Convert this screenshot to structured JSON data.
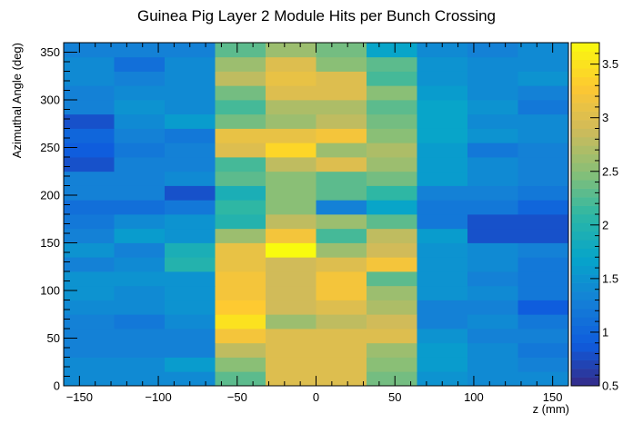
{
  "chart_data": {
    "type": "heatmap",
    "title": "Guinea Pig Layer 2 Module Hits per Bunch Crossing",
    "xlabel": "z (mm)",
    "ylabel": "Azimuthal Angle (deg)",
    "x_range": [
      -160,
      160
    ],
    "y_range": [
      0,
      360
    ],
    "x_ticks": [
      -150,
      -100,
      -50,
      0,
      50,
      100,
      150
    ],
    "y_ticks": [
      0,
      50,
      100,
      150,
      200,
      250,
      300,
      350
    ],
    "z_range": [
      0.5,
      3.7
    ],
    "z_ticks": [
      0.5,
      1,
      1.5,
      2,
      2.5,
      3,
      3.5
    ],
    "x_bins": 10,
    "y_bins": 24,
    "grid": false,
    "legend": "color bar on right",
    "cells": [
      [
        1.4,
        1.4,
        1.4,
        2.3,
        3.0,
        3.0,
        2.4,
        1.5,
        1.4,
        1.4
      ],
      [
        1.4,
        1.4,
        1.6,
        2.5,
        3.0,
        3.0,
        2.5,
        1.6,
        1.4,
        1.3
      ],
      [
        1.3,
        1.3,
        1.3,
        2.8,
        3.0,
        3.0,
        2.6,
        1.6,
        1.4,
        1.2
      ],
      [
        1.3,
        1.3,
        1.3,
        3.2,
        3.0,
        3.0,
        3.0,
        1.5,
        1.3,
        1.3
      ],
      [
        1.3,
        1.2,
        1.4,
        3.5,
        2.6,
        2.8,
        2.9,
        1.3,
        1.4,
        1.2
      ],
      [
        1.4,
        1.4,
        1.5,
        3.3,
        2.9,
        3.0,
        2.7,
        1.3,
        1.3,
        0.9
      ],
      [
        1.5,
        1.4,
        1.5,
        3.2,
        2.9,
        3.2,
        2.6,
        1.5,
        1.4,
        1.2
      ],
      [
        1.5,
        1.5,
        1.5,
        3.2,
        2.9,
        3.2,
        2.3,
        1.5,
        1.3,
        1.2
      ],
      [
        1.3,
        1.4,
        2.0,
        3.1,
        2.9,
        3.0,
        3.2,
        1.5,
        1.4,
        1.2
      ],
      [
        1.5,
        1.3,
        1.9,
        3.1,
        3.7,
        2.6,
        2.9,
        1.5,
        1.4,
        1.3
      ],
      [
        1.3,
        1.6,
        1.5,
        2.6,
        3.2,
        2.2,
        2.8,
        1.6,
        0.8,
        0.8
      ],
      [
        1.2,
        1.4,
        1.5,
        2.0,
        2.8,
        2.6,
        2.3,
        1.2,
        0.8,
        0.8
      ],
      [
        1.1,
        1.1,
        1.2,
        2.1,
        2.5,
        1.3,
        1.7,
        1.2,
        1.2,
        1.0
      ],
      [
        1.3,
        1.3,
        0.8,
        1.9,
        2.5,
        2.3,
        2.1,
        1.3,
        1.3,
        1.2
      ],
      [
        1.3,
        1.3,
        1.4,
        2.3,
        2.5,
        2.3,
        2.4,
        1.6,
        1.4,
        1.3
      ],
      [
        0.8,
        1.3,
        1.3,
        2.2,
        2.8,
        3.0,
        2.6,
        1.6,
        1.4,
        1.3
      ],
      [
        0.9,
        1.2,
        1.3,
        3.0,
        3.4,
        2.6,
        2.7,
        1.6,
        1.2,
        1.3
      ],
      [
        1.0,
        1.3,
        1.2,
        3.1,
        3.1,
        3.2,
        2.5,
        1.7,
        1.5,
        1.4
      ],
      [
        0.8,
        1.4,
        1.6,
        2.4,
        2.6,
        2.8,
        2.4,
        1.7,
        1.4,
        1.4
      ],
      [
        1.3,
        1.5,
        1.4,
        2.2,
        2.7,
        2.7,
        2.3,
        1.7,
        1.5,
        1.2
      ],
      [
        1.3,
        1.4,
        1.4,
        2.4,
        3.0,
        3.0,
        2.5,
        1.6,
        1.4,
        1.3
      ],
      [
        1.4,
        1.3,
        1.4,
        2.8,
        3.1,
        3.0,
        2.2,
        1.5,
        1.4,
        1.5
      ],
      [
        1.4,
        1.1,
        1.4,
        2.6,
        3.0,
        2.5,
        2.3,
        1.5,
        1.4,
        1.4
      ],
      [
        1.3,
        1.3,
        1.3,
        2.3,
        2.6,
        2.4,
        1.7,
        1.4,
        1.3,
        1.4
      ]
    ]
  }
}
